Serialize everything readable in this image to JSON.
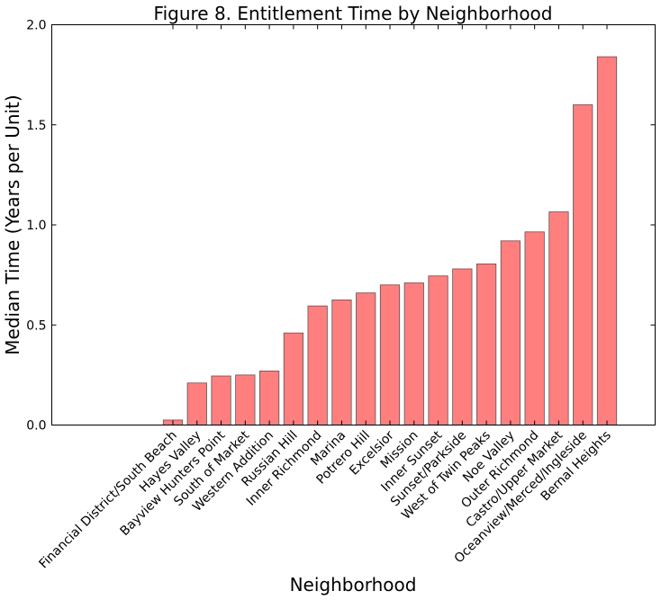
{
  "chart_data": {
    "type": "bar",
    "title": "Figure 8. Entitlement Time by Neighborhood",
    "xlabel": "Neighborhood",
    "ylabel": "Median Time (Years per Unit)",
    "ylim": [
      0,
      2.0
    ],
    "yticks": [
      "0.0",
      "0.5",
      "1.0",
      "1.5",
      "2.0"
    ],
    "ytick_values": [
      0.0,
      0.5,
      1.0,
      1.5,
      2.0
    ],
    "grid": false,
    "bar_color": "#ff7f7f",
    "bar_edge_color": "#555555",
    "categories": [
      "Financial District/South Beach",
      "Hayes Valley",
      "Bayview Hunters Point",
      "South of Market",
      "Western Addition",
      "Russian Hill",
      "Inner Richmond",
      "Marina",
      "Potrero Hill",
      "Excelsior",
      "Mission",
      "Inner Sunset",
      "Sunset/Parkside",
      "West of Twin Peaks",
      "Noe Valley",
      "Outer Richmond",
      "Castro/Upper Market",
      "Oceanview/Merced/Ingleside",
      "Bernal Heights"
    ],
    "values": [
      0.025,
      0.21,
      0.245,
      0.25,
      0.27,
      0.46,
      0.595,
      0.625,
      0.66,
      0.7,
      0.71,
      0.745,
      0.78,
      0.805,
      0.92,
      0.965,
      1.065,
      1.6,
      1.84
    ]
  }
}
